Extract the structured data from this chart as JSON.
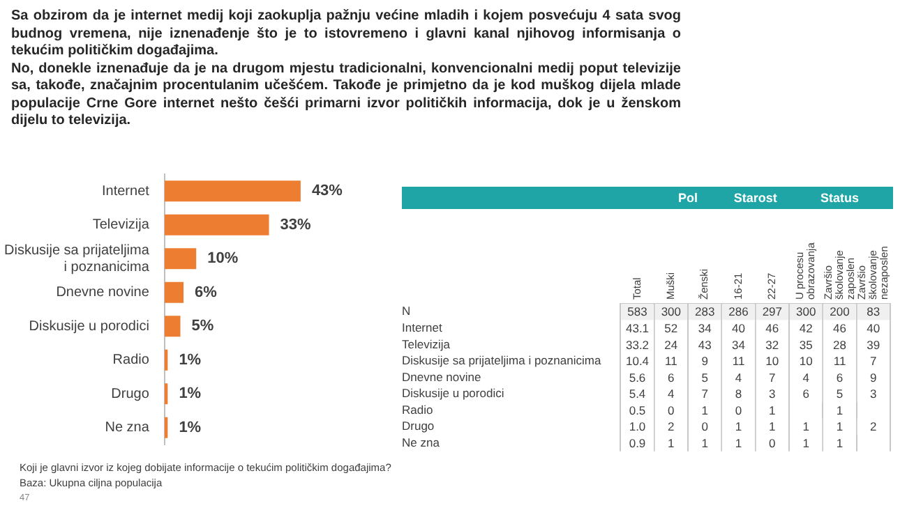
{
  "chart_data": [
    {
      "type": "bar",
      "orientation": "horizontal",
      "title": "Sa obzirom da je internet medij koji zaokuplja pažnju većine mladih i kojem posvećuju 4 sata svog budnog vremena, nije iznenađenje što je to istovremeno i glavni kanal njihovog informisanja o tekućim političkim događajima.",
      "subtitle": "No, donekle iznenađuje da je na drugom mjestu tradicionalni, konvencionalni medij poput televizije sa, takođe, značajnim procentulanim učešćem. Takođe je primjetno da je kod muškog dijela mlade populacije Crne Gore internet nešto češći primarni izvor političkih informacija, dok je u ženskom dijelu to televizija.",
      "categories": [
        "Internet",
        "Televizija",
        "Diskusije sa prijateljima i poznanicima",
        "Dnevne novine",
        "Diskusije u porodici",
        "Radio",
        "Drugo",
        "Ne zna"
      ],
      "values": [
        43,
        33,
        10,
        6,
        5,
        1,
        1,
        1
      ],
      "value_labels": [
        "43%",
        "33%",
        "10%",
        "6%",
        "5%",
        "1%",
        "1%",
        "1%"
      ],
      "color": "#ed7d31",
      "grid": false,
      "legend": false,
      "annotations": [
        "Koji je glavni izvor iz kojeg dobijate informacije o tekućim političkim događajima?",
        "Baza: Ukupna ciljna populacija",
        "47"
      ]
    },
    {
      "type": "heatmap",
      "categories": [
        "Total",
        "Muški",
        "Ženski",
        "16-21",
        "22-27",
        "U procesu obrazovanja",
        "Završio školovanje zaposlen",
        "Završio školovanje nezaposlen"
      ],
      "y_categories": [
        "N",
        "Internet",
        "Televizija",
        "Diskusije sa prijateljima i poznanicima",
        "Dnevne novine",
        "Diskusije u porodici",
        "Radio",
        "Drugo",
        "Ne zna"
      ],
      "cells": [
        [
          583,
          300,
          283,
          286,
          297,
          300,
          200,
          83
        ],
        [
          43.1,
          52,
          34,
          40,
          46,
          42,
          46,
          40
        ],
        [
          33.2,
          24,
          43,
          34,
          32,
          35,
          28,
          39
        ],
        [
          10.4,
          11,
          9,
          11,
          10,
          10,
          11,
          7
        ],
        [
          5.6,
          6,
          5,
          4,
          7,
          4,
          6,
          9
        ],
        [
          5.4,
          4,
          7,
          8,
          3,
          6,
          5,
          3
        ],
        [
          0.5,
          0,
          1,
          0,
          1,
          null,
          1,
          null
        ],
        [
          1.0,
          2,
          0,
          1,
          1,
          1,
          1,
          2
        ],
        [
          0.9,
          1,
          1,
          1,
          0,
          1,
          1,
          null
        ]
      ],
      "cell_labels": [
        [
          "583",
          "300",
          "283",
          "286",
          "297",
          "300",
          "200",
          "83"
        ],
        [
          "43.1",
          "52",
          "34",
          "40",
          "46",
          "42",
          "46",
          "40"
        ],
        [
          "33.2",
          "24",
          "43",
          "34",
          "32",
          "35",
          "28",
          "39"
        ],
        [
          "10.4",
          "11",
          "9",
          "11",
          "10",
          "10",
          "11",
          "7"
        ],
        [
          "5.6",
          "6",
          "5",
          "4",
          "7",
          "4",
          "6",
          "9"
        ],
        [
          "5.4",
          "4",
          "7",
          "8",
          "3",
          "6",
          "5",
          "3"
        ],
        [
          "0.5",
          "0",
          "1",
          "0",
          "1",
          null,
          "1",
          null
        ],
        [
          "1.0",
          "2",
          "0",
          "1",
          "1",
          "1",
          "1",
          "2"
        ],
        [
          "0.9",
          "1",
          "1",
          "1",
          "0",
          "1",
          "1",
          null
        ]
      ],
      "grid": "x",
      "annotations": [
        "Pol",
        "Starost",
        "Status"
      ]
    }
  ]
}
